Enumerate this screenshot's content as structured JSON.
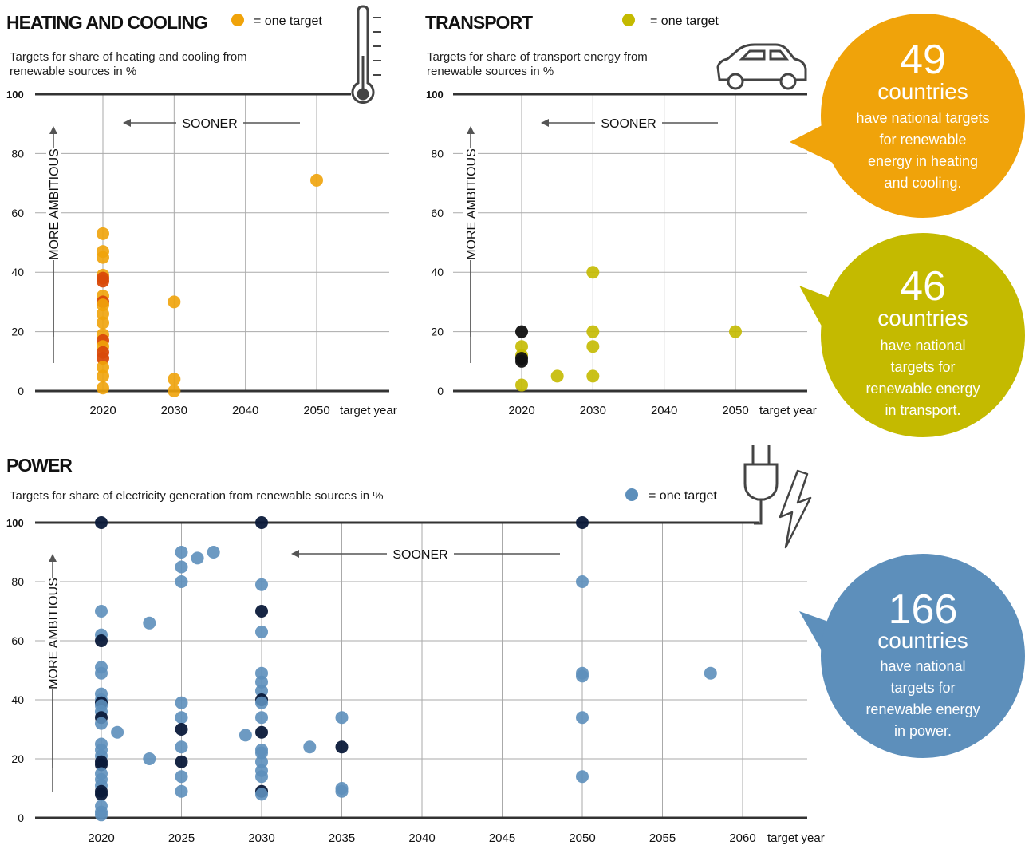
{
  "colors": {
    "heating": "#f0a30a",
    "heating_dark": "#d94a0a",
    "transport": "#c4ba00",
    "power": "#5d8fbb",
    "power_dark": "#0b1a3a",
    "axis": "#333333",
    "grid": "#aaaaaa"
  },
  "icons": [
    "thermometer-icon",
    "car-icon",
    "plug-icon",
    "lightning-icon"
  ],
  "chart_data": [
    {
      "type": "scatter",
      "id": "heating",
      "title": "HEATING AND COOLING",
      "subtitle": "Targets for share of heating and cooling from renewable sources in %",
      "legend": "= one target",
      "xlabel": "target year",
      "ylabel": "MORE AMBITIOUS",
      "arrow_label": "SOONER",
      "x_ticks": [
        2020,
        2030,
        2040,
        2050
      ],
      "y_ticks": [
        0,
        20,
        40,
        60,
        80,
        100
      ],
      "xlim": [
        2010,
        2060
      ],
      "ylim": [
        0,
        100
      ],
      "points": [
        {
          "x": 2020,
          "y": 53
        },
        {
          "x": 2020,
          "y": 47
        },
        {
          "x": 2020,
          "y": 45
        },
        {
          "x": 2020,
          "y": 39
        },
        {
          "x": 2020,
          "y": 38,
          "dark": true
        },
        {
          "x": 2020,
          "y": 37,
          "dark": true
        },
        {
          "x": 2020,
          "y": 32
        },
        {
          "x": 2020,
          "y": 30,
          "dark": true
        },
        {
          "x": 2020,
          "y": 29
        },
        {
          "x": 2020,
          "y": 26
        },
        {
          "x": 2020,
          "y": 23
        },
        {
          "x": 2020,
          "y": 19
        },
        {
          "x": 2020,
          "y": 17,
          "dark": true
        },
        {
          "x": 2020,
          "y": 15
        },
        {
          "x": 2020,
          "y": 13,
          "dark": true
        },
        {
          "x": 2020,
          "y": 11,
          "dark": true
        },
        {
          "x": 2020,
          "y": 8
        },
        {
          "x": 2020,
          "y": 5
        },
        {
          "x": 2020,
          "y": 1
        },
        {
          "x": 2030,
          "y": 30
        },
        {
          "x": 2030,
          "y": 4
        },
        {
          "x": 2030,
          "y": 0
        },
        {
          "x": 2050,
          "y": 71
        }
      ]
    },
    {
      "type": "scatter",
      "id": "transport",
      "title": "TRANSPORT",
      "subtitle": "Targets for share of transport energy from renewable sources in %",
      "legend": "= one target",
      "xlabel": "target year",
      "ylabel": "MORE AMBITIOUS",
      "arrow_label": "SOONER",
      "x_ticks": [
        2020,
        2030,
        2040,
        2050
      ],
      "y_ticks": [
        0,
        20,
        40,
        60,
        80,
        100
      ],
      "xlim": [
        2010,
        2060
      ],
      "ylim": [
        0,
        100
      ],
      "points": [
        {
          "x": 2020,
          "y": 20,
          "dark": true
        },
        {
          "x": 2020,
          "y": 15
        },
        {
          "x": 2020,
          "y": 12
        },
        {
          "x": 2020,
          "y": 11,
          "dark": true
        },
        {
          "x": 2020,
          "y": 10,
          "dark": true
        },
        {
          "x": 2020,
          "y": 2
        },
        {
          "x": 2025,
          "y": 5
        },
        {
          "x": 2030,
          "y": 40
        },
        {
          "x": 2030,
          "y": 20
        },
        {
          "x": 2030,
          "y": 15
        },
        {
          "x": 2030,
          "y": 5
        },
        {
          "x": 2050,
          "y": 20
        }
      ]
    },
    {
      "type": "scatter",
      "id": "power",
      "title": "POWER",
      "subtitle": "Targets for share of electricity generation from renewable sources in %",
      "legend": "= one target",
      "xlabel": "target year",
      "ylabel": "MORE AMBITIOUS",
      "arrow_label": "SOONER",
      "x_ticks": [
        2020,
        2025,
        2030,
        2035,
        2040,
        2045,
        2050,
        2055,
        2060
      ],
      "y_ticks": [
        0,
        20,
        40,
        60,
        80,
        100
      ],
      "xlim": [
        2010,
        2062
      ],
      "ylim": [
        0,
        100
      ],
      "points": [
        {
          "x": 2020,
          "y": 100,
          "dark": true
        },
        {
          "x": 2020,
          "y": 70
        },
        {
          "x": 2020,
          "y": 62
        },
        {
          "x": 2020,
          "y": 60,
          "dark": true
        },
        {
          "x": 2020,
          "y": 51
        },
        {
          "x": 2020,
          "y": 49
        },
        {
          "x": 2020,
          "y": 42
        },
        {
          "x": 2020,
          "y": 40
        },
        {
          "x": 2020,
          "y": 39,
          "dark": true
        },
        {
          "x": 2020,
          "y": 38
        },
        {
          "x": 2020,
          "y": 36
        },
        {
          "x": 2020,
          "y": 34,
          "dark": true
        },
        {
          "x": 2020,
          "y": 32
        },
        {
          "x": 2020,
          "y": 25
        },
        {
          "x": 2020,
          "y": 23
        },
        {
          "x": 2020,
          "y": 21
        },
        {
          "x": 2020,
          "y": 19,
          "dark": true
        },
        {
          "x": 2020,
          "y": 18,
          "dark": true
        },
        {
          "x": 2020,
          "y": 15
        },
        {
          "x": 2020,
          "y": 13
        },
        {
          "x": 2020,
          "y": 11
        },
        {
          "x": 2020,
          "y": 9,
          "dark": true
        },
        {
          "x": 2020,
          "y": 8,
          "dark": true
        },
        {
          "x": 2020,
          "y": 4
        },
        {
          "x": 2020,
          "y": 2
        },
        {
          "x": 2020,
          "y": 1
        },
        {
          "x": 2021,
          "y": 29
        },
        {
          "x": 2023,
          "y": 66
        },
        {
          "x": 2023,
          "y": 20
        },
        {
          "x": 2025,
          "y": 90
        },
        {
          "x": 2025,
          "y": 85
        },
        {
          "x": 2025,
          "y": 80
        },
        {
          "x": 2025,
          "y": 39
        },
        {
          "x": 2025,
          "y": 34
        },
        {
          "x": 2025,
          "y": 30,
          "dark": true
        },
        {
          "x": 2025,
          "y": 24
        },
        {
          "x": 2025,
          "y": 19,
          "dark": true
        },
        {
          "x": 2025,
          "y": 14
        },
        {
          "x": 2025,
          "y": 9
        },
        {
          "x": 2026,
          "y": 88
        },
        {
          "x": 2027,
          "y": 90
        },
        {
          "x": 2029,
          "y": 28
        },
        {
          "x": 2030,
          "y": 100,
          "dark": true
        },
        {
          "x": 2030,
          "y": 79
        },
        {
          "x": 2030,
          "y": 70,
          "dark": true
        },
        {
          "x": 2030,
          "y": 63
        },
        {
          "x": 2030,
          "y": 49
        },
        {
          "x": 2030,
          "y": 46
        },
        {
          "x": 2030,
          "y": 43
        },
        {
          "x": 2030,
          "y": 40,
          "dark": true
        },
        {
          "x": 2030,
          "y": 39
        },
        {
          "x": 2030,
          "y": 34
        },
        {
          "x": 2030,
          "y": 29,
          "dark": true
        },
        {
          "x": 2030,
          "y": 23
        },
        {
          "x": 2030,
          "y": 22
        },
        {
          "x": 2030,
          "y": 19
        },
        {
          "x": 2030,
          "y": 16
        },
        {
          "x": 2030,
          "y": 14
        },
        {
          "x": 2030,
          "y": 9,
          "dark": true
        },
        {
          "x": 2030,
          "y": 8
        },
        {
          "x": 2033,
          "y": 24
        },
        {
          "x": 2035,
          "y": 34
        },
        {
          "x": 2035,
          "y": 24,
          "dark": true
        },
        {
          "x": 2035,
          "y": 10
        },
        {
          "x": 2035,
          "y": 9
        },
        {
          "x": 2050,
          "y": 100,
          "dark": true
        },
        {
          "x": 2050,
          "y": 80
        },
        {
          "x": 2050,
          "y": 49
        },
        {
          "x": 2050,
          "y": 48
        },
        {
          "x": 2050,
          "y": 34
        },
        {
          "x": 2050,
          "y": 14
        },
        {
          "x": 2058,
          "y": 49
        }
      ]
    }
  ],
  "callouts": [
    {
      "number": "49",
      "unit": "countries",
      "lines": [
        "have national targets",
        "for renewable",
        "energy in heating",
        "and cooling."
      ]
    },
    {
      "number": "46",
      "unit": "countries",
      "lines": [
        "have national",
        "targets for",
        "renewable energy",
        "in transport."
      ]
    },
    {
      "number": "166",
      "unit": "countries",
      "lines": [
        "have national",
        "targets for",
        "renewable energy",
        "in power."
      ]
    }
  ]
}
